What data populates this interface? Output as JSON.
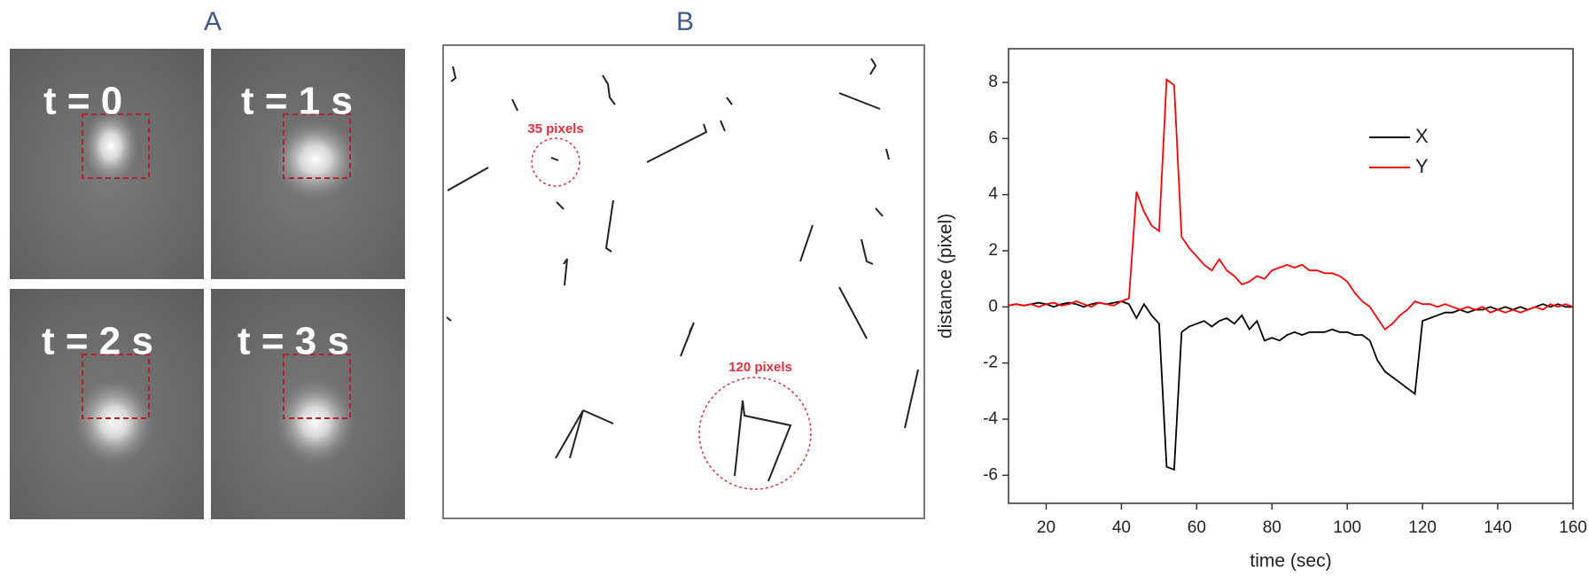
{
  "panel_a": {
    "label": "A",
    "frames": [
      "t = 0",
      "t = 1 s",
      "t = 2 s",
      "t = 3 s"
    ]
  },
  "panel_b": {
    "label": "B",
    "annotations": [
      "35 pixels",
      "120 pixels"
    ]
  },
  "chart_data": {
    "type": "line",
    "xlabel": "time (sec)",
    "ylabel": "distance (pixel)",
    "x": [
      10,
      12,
      14,
      16,
      18,
      20,
      22,
      24,
      26,
      28,
      30,
      32,
      34,
      36,
      38,
      40,
      42,
      44,
      46,
      48,
      50,
      52,
      54,
      56,
      58,
      60,
      62,
      64,
      66,
      68,
      70,
      72,
      74,
      76,
      78,
      80,
      82,
      84,
      86,
      88,
      90,
      92,
      94,
      96,
      98,
      100,
      102,
      104,
      106,
      108,
      110,
      112,
      114,
      116,
      118,
      120,
      122,
      124,
      126,
      128,
      130,
      132,
      134,
      136,
      138,
      140,
      142,
      144,
      146,
      148,
      150,
      152,
      154,
      156,
      158,
      160
    ],
    "series": [
      {
        "name": "X",
        "color": "#000000",
        "values": [
          0.05,
          0.1,
          0.05,
          0.1,
          0.15,
          0.1,
          0.0,
          0.1,
          0.15,
          0.1,
          0.0,
          0.1,
          0.15,
          0.1,
          0.15,
          0.2,
          0.1,
          -0.4,
          0.1,
          -0.3,
          -0.6,
          -5.7,
          -5.8,
          -0.9,
          -0.7,
          -0.6,
          -0.5,
          -0.7,
          -0.5,
          -0.4,
          -0.6,
          -0.3,
          -0.8,
          -0.5,
          -1.2,
          -1.1,
          -1.2,
          -1.0,
          -0.9,
          -1.0,
          -0.9,
          -0.9,
          -0.9,
          -0.8,
          -0.9,
          -0.9,
          -1.0,
          -1.0,
          -1.2,
          -1.9,
          -2.3,
          -2.5,
          -2.7,
          -2.9,
          -3.1,
          -0.5,
          -0.4,
          -0.3,
          -0.2,
          -0.2,
          -0.1,
          -0.2,
          -0.1,
          -0.1,
          0.0,
          -0.1,
          0.0,
          -0.1,
          0.0,
          -0.1,
          0.0,
          0.1,
          0.0,
          0.1,
          0.0,
          0.0
        ]
      },
      {
        "name": "Y",
        "color": "#ff0000",
        "values": [
          0.05,
          0.1,
          0.05,
          0.1,
          0.0,
          0.1,
          0.15,
          0.05,
          0.1,
          0.2,
          0.1,
          0.0,
          0.15,
          0.1,
          0.05,
          0.2,
          0.3,
          4.1,
          3.4,
          2.9,
          2.7,
          8.1,
          7.9,
          2.5,
          2.1,
          1.8,
          1.5,
          1.3,
          1.7,
          1.3,
          1.1,
          0.8,
          0.9,
          1.1,
          1.0,
          1.3,
          1.4,
          1.5,
          1.4,
          1.5,
          1.3,
          1.3,
          1.2,
          1.2,
          1.1,
          0.9,
          0.5,
          0.2,
          0.0,
          -0.4,
          -0.8,
          -0.6,
          -0.3,
          -0.1,
          0.2,
          0.1,
          0.1,
          0.0,
          0.1,
          0.0,
          -0.1,
          0.0,
          -0.1,
          0.0,
          -0.2,
          -0.1,
          -0.2,
          -0.1,
          -0.2,
          -0.1,
          0.0,
          -0.1,
          0.1,
          0.0,
          0.1,
          0.0
        ]
      }
    ],
    "xlim": [
      10,
      160
    ],
    "xticks": [
      20,
      40,
      60,
      80,
      100,
      120,
      140,
      160
    ],
    "ylim": [
      -7,
      9.2
    ],
    "yticks": [
      -6,
      -4,
      -2,
      0,
      2,
      4,
      6,
      8
    ],
    "legend": "upper right"
  }
}
